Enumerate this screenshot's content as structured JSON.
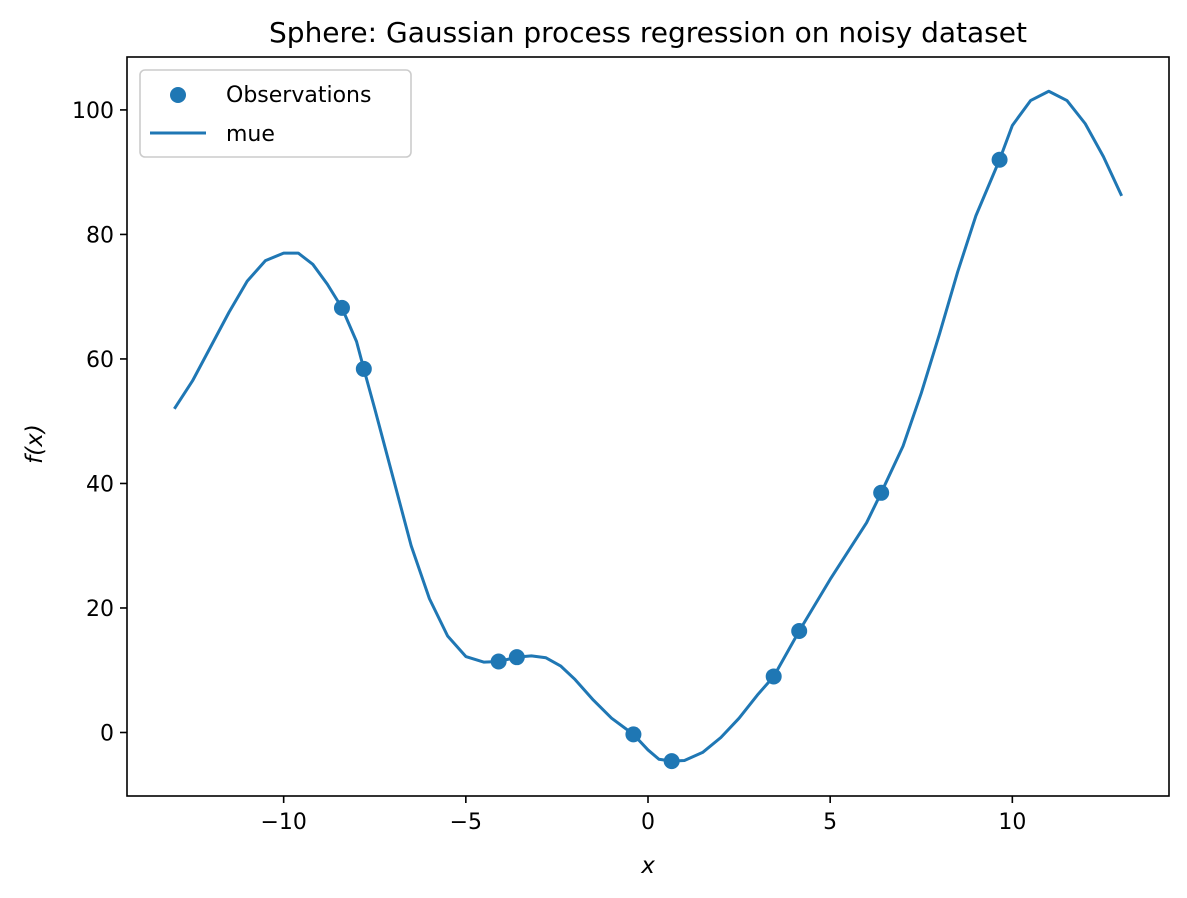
{
  "chart_data": {
    "type": "scatter",
    "title": "Sphere: Gaussian process regression on noisy dataset",
    "xlabel": "x",
    "ylabel": "f(x)",
    "xlim": [
      -14.3,
      14.3
    ],
    "ylim": [
      -10.2,
      108.5
    ],
    "xticks": [
      -10,
      -5,
      0,
      5,
      10
    ],
    "xtick_labels": [
      "−10",
      "−5",
      "0",
      "5",
      "10"
    ],
    "yticks": [
      0,
      20,
      40,
      60,
      80,
      100
    ],
    "ytick_labels": [
      "0",
      "20",
      "40",
      "60",
      "80",
      "100"
    ],
    "grid": false,
    "legend_position": "top-left",
    "color": "#1f77b4",
    "series": [
      {
        "name": "Observations",
        "type": "scatter",
        "x": [
          -8.4,
          -7.8,
          -4.1,
          -3.6,
          -0.4,
          0.65,
          3.45,
          4.15,
          6.4,
          9.65
        ],
        "y": [
          68.2,
          58.4,
          11.4,
          12.1,
          -0.3,
          -4.6,
          9.0,
          16.3,
          38.5,
          92.0
        ]
      },
      {
        "name": "mue",
        "type": "line",
        "x": [
          -13.0,
          -12.5,
          -12.0,
          -11.5,
          -11.0,
          -10.5,
          -10.0,
          -9.6,
          -9.2,
          -8.8,
          -8.4,
          -8.0,
          -7.8,
          -7.5,
          -7.0,
          -6.5,
          -6.0,
          -5.5,
          -5.0,
          -4.5,
          -4.1,
          -3.6,
          -3.2,
          -2.8,
          -2.4,
          -2.0,
          -1.5,
          -1.0,
          -0.4,
          0.0,
          0.3,
          0.65,
          1.0,
          1.5,
          2.0,
          2.5,
          3.0,
          3.45,
          4.15,
          5.0,
          6.0,
          6.4,
          7.0,
          7.5,
          8.0,
          8.5,
          9.0,
          9.65,
          10.0,
          10.5,
          11.0,
          11.5,
          12.0,
          12.5,
          13.0
        ],
        "y": [
          52.0,
          56.5,
          62.0,
          67.5,
          72.5,
          75.8,
          77.0,
          77.0,
          75.2,
          72.0,
          68.2,
          62.8,
          58.4,
          52.0,
          41.0,
          30.0,
          21.5,
          15.5,
          12.2,
          11.3,
          11.4,
          12.1,
          12.3,
          12.0,
          10.7,
          8.5,
          5.2,
          2.3,
          -0.3,
          -2.8,
          -4.3,
          -4.6,
          -4.5,
          -3.2,
          -0.8,
          2.3,
          6.0,
          9.0,
          16.3,
          24.6,
          33.7,
          38.5,
          46.0,
          54.5,
          64.0,
          74.0,
          83.0,
          92.0,
          97.5,
          101.5,
          103.0,
          101.5,
          97.8,
          92.5,
          86.2
        ]
      }
    ]
  }
}
